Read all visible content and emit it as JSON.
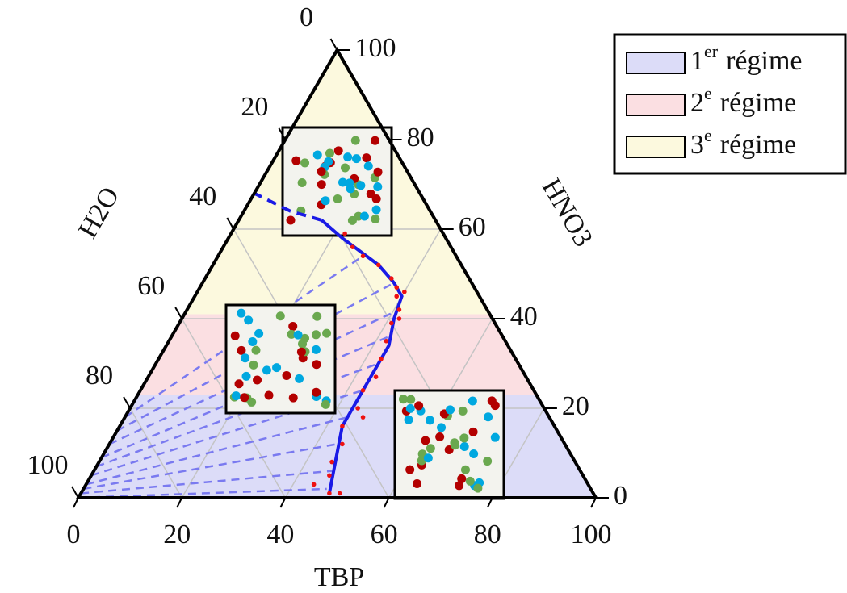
{
  "chart_data": {
    "type": "ternary",
    "axes": {
      "bottom": "TBP",
      "left": "H2O",
      "right": "HNO3"
    },
    "tbp_ticks": [
      0,
      20,
      40,
      60,
      80,
      100
    ],
    "hno3_ticks": [
      0,
      20,
      40,
      60,
      80,
      100
    ],
    "h2o_ticks": [
      0,
      20,
      40,
      60,
      80,
      100
    ],
    "grid": true,
    "regions": [
      {
        "number": "1",
        "sup": "er",
        "text": "régime",
        "color": "#dcdcf8",
        "hno3_range": [
          0,
          23
        ]
      },
      {
        "number": "2",
        "sup": "e",
        "text": "régime",
        "color": "#fbdfe2",
        "hno3_range": [
          23,
          41
        ]
      },
      {
        "number": "3",
        "sup": "e",
        "text": "régime",
        "color": "#fcf9de",
        "hno3_range": [
          41,
          100
        ]
      }
    ],
    "curve": {
      "color": "#1a1ae6",
      "tbp": [
        48,
        46,
        45,
        43,
        43,
        43,
        43,
        41,
        40,
        37,
        32,
        27,
        22,
        16
      ],
      "hno3": [
        1,
        7,
        10,
        16,
        20,
        27,
        34,
        40,
        45,
        48,
        52,
        55,
        58,
        62
      ]
    },
    "extrapolation": {
      "color": "#1a1ae6",
      "tbp": [
        16,
        9,
        0
      ],
      "hno3": [
        62,
        64,
        68
      ]
    },
    "tie_lines": {
      "color": "#7a7af0",
      "start_hno3": [
        0,
        1,
        2,
        3,
        5,
        7,
        9,
        12,
        15,
        18
      ],
      "end_tbp": [
        47,
        46,
        44,
        43,
        43,
        43,
        42,
        41,
        37,
        28
      ],
      "end_hno3": [
        2,
        6,
        12,
        18,
        24,
        30,
        36,
        42,
        48,
        54
      ]
    },
    "points": {
      "color": "#ee1111",
      "tbp": [
        48,
        50,
        46,
        45,
        45,
        43,
        44,
        43,
        44,
        43,
        42,
        41,
        41,
        39,
        38,
        36,
        32,
        28,
        25,
        22,
        44,
        46,
        42,
        40
      ],
      "hno3": [
        1,
        1,
        5,
        8,
        12,
        16,
        20,
        24,
        27,
        31,
        35,
        39,
        42,
        45,
        47,
        49,
        52,
        54,
        56,
        59,
        3,
        18,
        40,
        46
      ]
    }
  }
}
